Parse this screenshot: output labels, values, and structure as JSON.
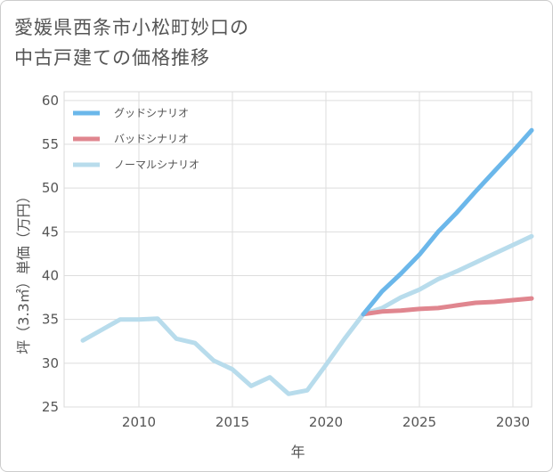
{
  "title_lines": [
    "愛媛県西条市小松町妙口の",
    "中古戸建ての価格推移"
  ],
  "chart_data": {
    "type": "line",
    "xlabel": "年",
    "ylabel": "坪（3.3㎡）単価（万円）",
    "xlim": [
      2006,
      2031
    ],
    "ylim": [
      25,
      61
    ],
    "xticks": [
      2010,
      2015,
      2020,
      2025,
      2030
    ],
    "yticks": [
      25,
      30,
      35,
      40,
      45,
      50,
      55,
      60
    ],
    "grid": true,
    "legend_position": "top-left",
    "series": [
      {
        "name": "グッドシナリオ",
        "color": "#6bb7ea",
        "x": [
          2022,
          2023,
          2024,
          2025,
          2026,
          2027,
          2028,
          2029,
          2030,
          2031
        ],
        "y": [
          35.6,
          38.2,
          40.2,
          42.4,
          45.0,
          47.2,
          49.6,
          51.9,
          54.2,
          56.6
        ]
      },
      {
        "name": "バッドシナリオ",
        "color": "#e0868f",
        "x": [
          2022,
          2023,
          2024,
          2025,
          2026,
          2027,
          2028,
          2029,
          2030,
          2031
        ],
        "y": [
          35.6,
          35.9,
          36.0,
          36.2,
          36.3,
          36.6,
          36.9,
          37.0,
          37.2,
          37.4
        ]
      },
      {
        "name": "ノーマルシナリオ",
        "color": "#b8dcec",
        "x": [
          2007,
          2008,
          2009,
          2010,
          2011,
          2012,
          2013,
          2014,
          2015,
          2016,
          2017,
          2018,
          2019,
          2020,
          2021,
          2022,
          2023,
          2024,
          2025,
          2026,
          2027,
          2028,
          2029,
          2030,
          2031
        ],
        "y": [
          32.6,
          33.8,
          35.0,
          35.0,
          35.1,
          32.8,
          32.3,
          30.3,
          29.3,
          27.4,
          28.4,
          26.5,
          26.9,
          29.8,
          32.8,
          35.6,
          36.3,
          37.5,
          38.4,
          39.6,
          40.5,
          41.5,
          42.5,
          43.5,
          44.5
        ]
      }
    ]
  }
}
